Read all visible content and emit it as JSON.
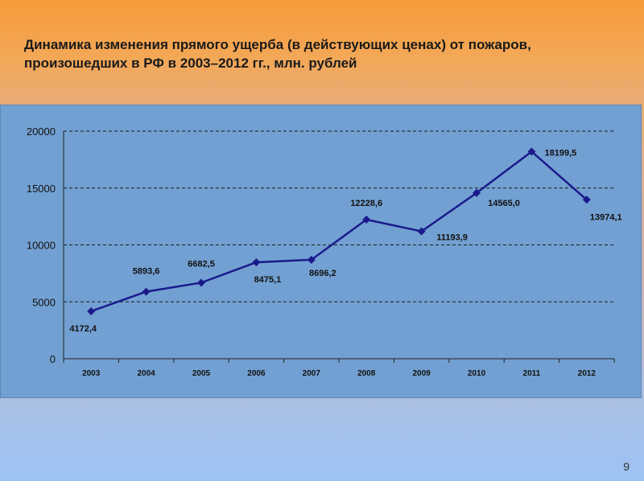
{
  "slide": {
    "title": "Динамика изменения прямого ущерба (в действующих ценах) от пожаров, произошедших в РФ в 2003–2012 гг., млн. рублей",
    "page_number": "9"
  },
  "colors": {
    "line": "#1a1a8c",
    "panel": "#72a0d2",
    "grid": "#1a1a1a"
  },
  "chart_data": {
    "type": "line",
    "categories": [
      "2003",
      "2004",
      "2005",
      "2006",
      "2007",
      "2008",
      "2009",
      "2010",
      "2011",
      "2012"
    ],
    "series": [
      {
        "values": [
          4172.4,
          5893.6,
          6682.5,
          8475.1,
          8696.2,
          12228.6,
          11193.9,
          14565.0,
          18199.5,
          13974.1
        ],
        "labels": [
          "4172,4",
          "5893,6",
          "6682,5",
          "8475,1",
          "8696,2",
          "12228,6",
          "11193,9",
          "14565,0",
          "18199,5",
          "13974,1"
        ]
      }
    ],
    "ylim": [
      0,
      20000
    ],
    "yticks": [
      "0",
      "5000",
      "10000",
      "15000",
      "20000"
    ],
    "grid": "horizontal dashed",
    "title": "",
    "xlabel": "",
    "ylabel": ""
  }
}
